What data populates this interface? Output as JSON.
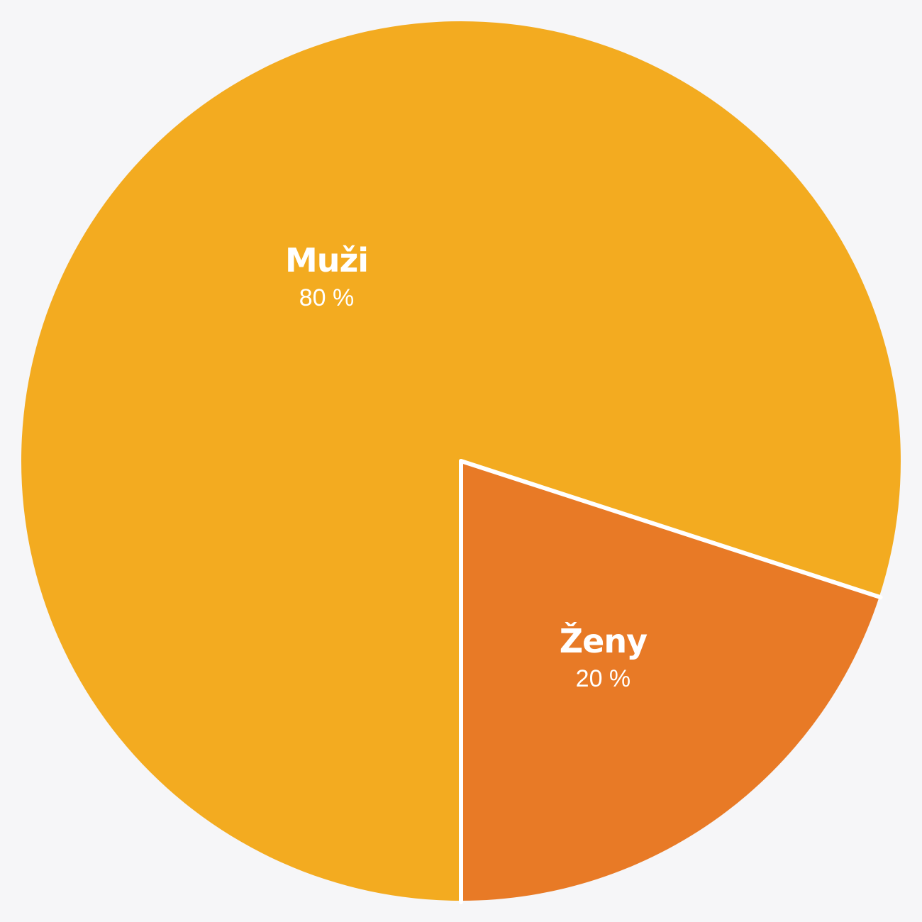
{
  "chart_data": {
    "type": "pie",
    "start_angle_deg": 0,
    "direction": "clockwise",
    "slices": [
      {
        "name": "Ženy",
        "value": 20,
        "label": "20 %",
        "color": "#e87a26"
      },
      {
        "name": "Muži",
        "value": 80,
        "label": "80 %",
        "color": "#f3ab20"
      }
    ],
    "separator_color": "#ffffff",
    "background_color": "#f6f6f8"
  }
}
